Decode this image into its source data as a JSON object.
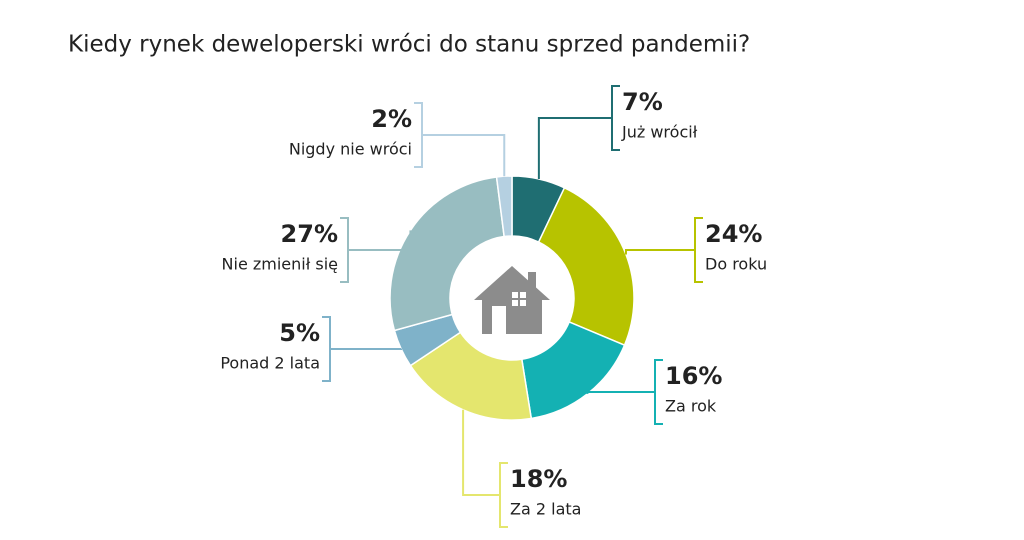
{
  "chart_data": {
    "type": "donut",
    "title": "Kiedy rynek deweloperski wróci do stanu  sprzed pandemii?",
    "categories": [
      "Już wrócił",
      "Do roku",
      "Za rok",
      "Za 2 lata",
      "Ponad 2 lata",
      "Nie zmienił się",
      "Nigdy nie wróci"
    ],
    "values": [
      7,
      24,
      16,
      18,
      5,
      27,
      2
    ],
    "value_labels": [
      "7%",
      "24%",
      "16%",
      "18%",
      "5%",
      "27%",
      "2%"
    ],
    "colors": [
      "#1f6e72",
      "#b7c300",
      "#14b1b3",
      "#e4e66e",
      "#7fb2c9",
      "#98bdc1",
      "#b5d0e1"
    ]
  }
}
